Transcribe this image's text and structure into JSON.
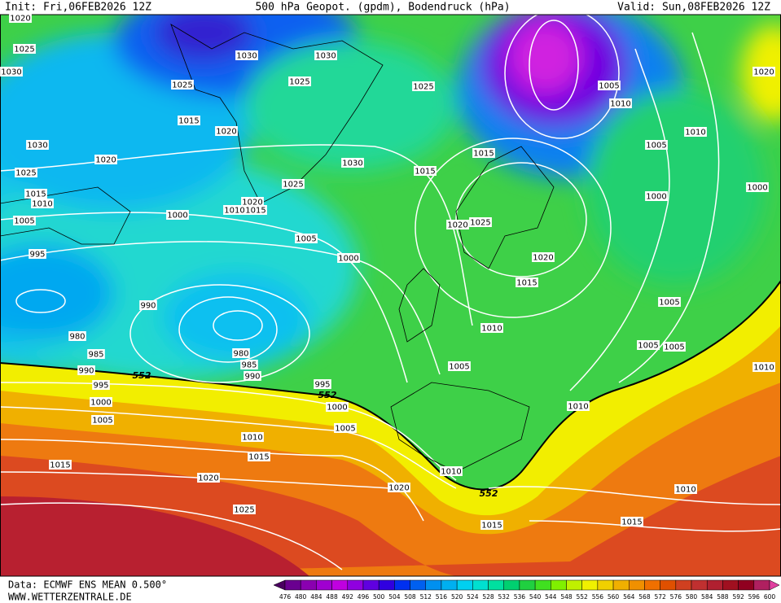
{
  "header": {
    "init": "Init: Fri,06FEB2026 12Z",
    "title": "500 hPa Geopot. (gpdm), Bodendruck (hPa)",
    "valid": "Valid: Sun,08FEB2026 12Z"
  },
  "map": {
    "isobar_labels": [
      "1020",
      "1025",
      "1030",
      "1030",
      "1030",
      "1025",
      "1025",
      "1025",
      "1015",
      "1020",
      "1030",
      "1020",
      "1030",
      "1015",
      "1015",
      "1025",
      "1025",
      "1015",
      "1010",
      "1020",
      "1010",
      "1015",
      "1000",
      "1005",
      "1020",
      "1025",
      "1005",
      "995",
      "1000",
      "1020",
      "1015",
      "990",
      "1010",
      "980",
      "980",
      "985",
      "985",
      "990",
      "990",
      "1005",
      "995",
      "995",
      "1000",
      "1000",
      "1005",
      "1005",
      "1010",
      "1015",
      "1015",
      "1020",
      "1020",
      "1010",
      "1025",
      "1015",
      "1015",
      "1010",
      "1010",
      "1005",
      "1005",
      "1005",
      "1000",
      "1005",
      "1010",
      "1010",
      "1005",
      "1000",
      "1020",
      "1010"
    ],
    "height_labels": [
      "552",
      "552",
      "552"
    ]
  },
  "colorbar": {
    "levels": [
      476,
      480,
      484,
      488,
      492,
      496,
      500,
      504,
      508,
      512,
      516,
      520,
      524,
      528,
      532,
      536,
      540,
      544,
      548,
      552,
      556,
      560,
      564,
      568,
      572,
      576,
      580,
      584,
      588,
      592,
      596,
      600
    ],
    "colors": [
      "#4a0060",
      "#6a0090",
      "#8a00b0",
      "#a000d0",
      "#c000e0",
      "#9000e0",
      "#6000e0",
      "#3000e0",
      "#0030f0",
      "#0060f0",
      "#0090f0",
      "#00b0f0",
      "#00d0f0",
      "#00e0d0",
      "#00e0a0",
      "#00d070",
      "#20d040",
      "#40e020",
      "#80f000",
      "#c0f000",
      "#f0f000",
      "#f0d000",
      "#f0b000",
      "#f09000",
      "#f07000",
      "#e05000",
      "#d04020",
      "#c03030",
      "#b02030",
      "#a01020",
      "#900020",
      "#b02060",
      "#e040a0"
    ]
  },
  "footer": {
    "data": "Data: ECMWF ENS MEAN 0.500°",
    "site": "WWW.WETTERZENTRALE.DE"
  }
}
